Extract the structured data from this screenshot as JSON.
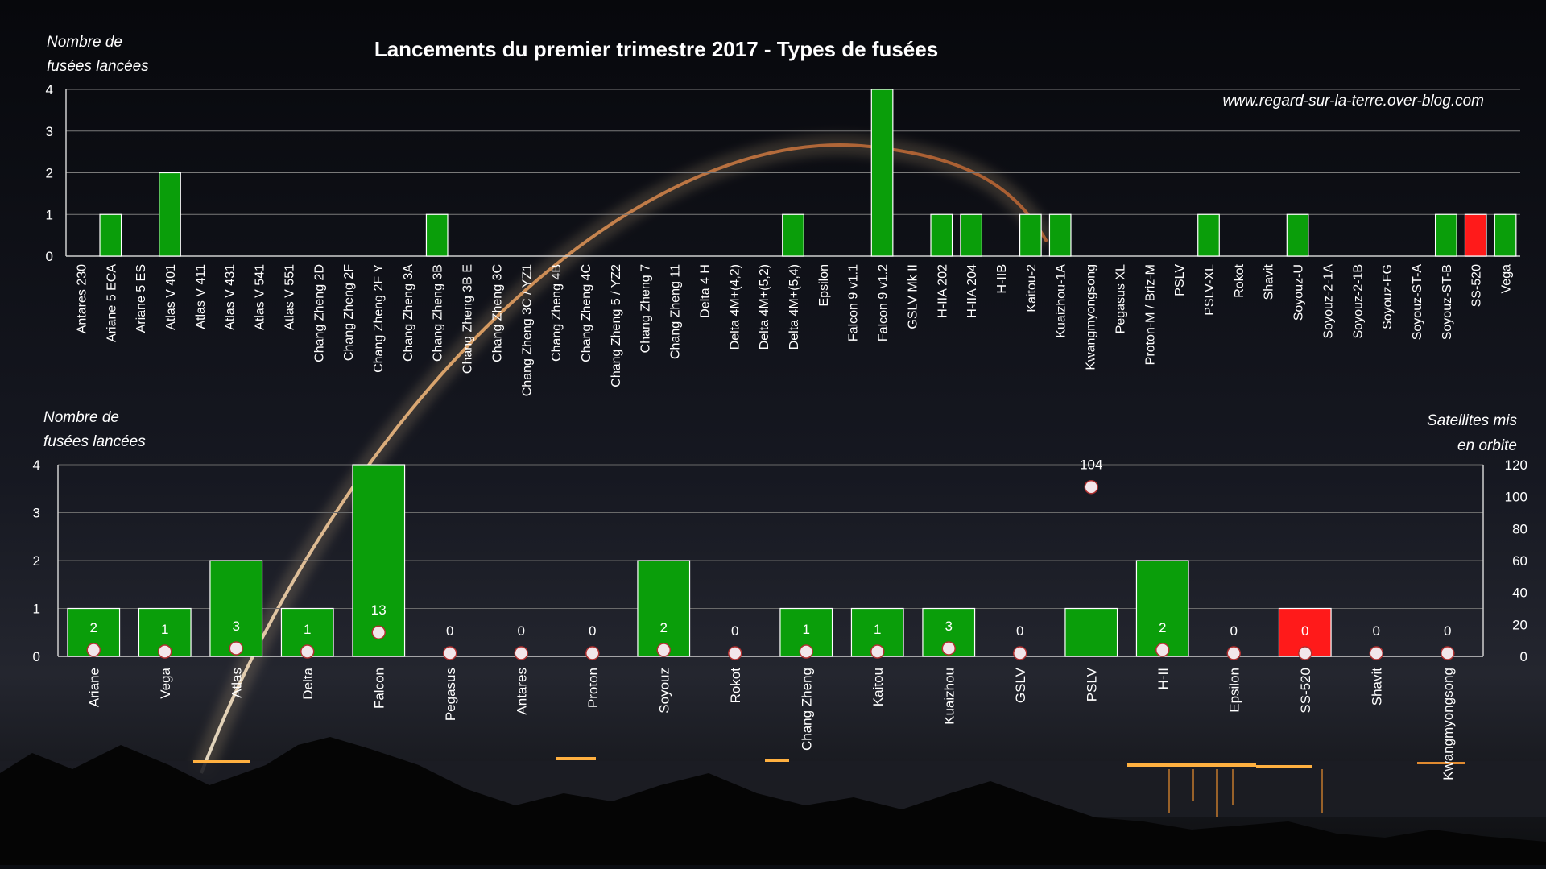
{
  "title": "Lancements du premier trimestre 2017 - Types de fusées",
  "watermark": "www.regard-sur-la-terre.over-blog.com",
  "colors": {
    "bar": "#0a9e0a",
    "highlight": "#ff1a1a",
    "marker_fill": "#f2e6ea",
    "marker_stroke": "#b03030",
    "text": "#ffffff",
    "axis": "#bfbfbf"
  },
  "chart_data": [
    {
      "type": "bar",
      "ylabel": "Nombre de\nfusées lancées",
      "ylim": [
        0,
        4
      ],
      "yticks": [
        0,
        1,
        2,
        3,
        4
      ],
      "categories": [
        "Antares 230",
        "Ariane 5 ECA",
        "Ariane 5 ES",
        "Atlas V 401",
        "Atlas V 411",
        "Atlas V 431",
        "Atlas V 541",
        "Atlas V 551",
        "Chang Zheng 2D",
        "Chang Zheng 2F",
        "Chang Zheng 2F Y",
        "Chang Zheng 3A",
        "Chang Zheng 3B",
        "Chang Zheng 3B E",
        "Chang Zheng 3C",
        "Chang Zheng 3C / YZ1",
        "Chang Zheng 4B",
        "Chang Zheng 4C",
        "Chang Zheng 5 / YZ2",
        "Chang Zheng 7",
        "Chang Zheng 11",
        "Delta 4 H",
        "Delta 4M+(4,2)",
        "Delta 4M+(5,2)",
        "Delta 4M+(5,4)",
        "Epsilon",
        "Falcon 9 v1.1",
        "Falcon 9 v1.2",
        "GSLV Mk II",
        "H-IIA 202",
        "H-IIA 204",
        "H-IIB",
        "Kaitou-2",
        "Kuaizhou-1A",
        "Kwangmyongsong",
        "Pegasus XL",
        "Proton-M / Briz-M",
        "PSLV",
        "PSLV-XL",
        "Rokot",
        "Shavit",
        "Soyouz-U",
        "Soyouz-2-1A",
        "Soyouz-2-1B",
        "Soyouz-FG",
        "Soyouz-ST-A",
        "Soyouz-ST-B",
        "SS-520",
        "Vega"
      ],
      "values": [
        0,
        1,
        0,
        2,
        0,
        0,
        0,
        0,
        0,
        0,
        0,
        0,
        1,
        0,
        0,
        0,
        0,
        0,
        0,
        0,
        0,
        0,
        0,
        0,
        1,
        0,
        0,
        4,
        0,
        1,
        1,
        0,
        1,
        1,
        0,
        0,
        0,
        0,
        1,
        0,
        0,
        1,
        0,
        0,
        0,
        0,
        1,
        1,
        1
      ],
      "highlight": [
        "SS-520"
      ]
    },
    {
      "type": "bar",
      "ylabel": "Nombre de\nfusées lancées",
      "y2label": "Satellites mis\nen orbite",
      "ylim": [
        0,
        4
      ],
      "yticks": [
        0,
        1,
        2,
        3,
        4
      ],
      "y2lim": [
        0,
        120
      ],
      "y2ticks": [
        0,
        20,
        40,
        60,
        80,
        100,
        120
      ],
      "categories": [
        "Ariane",
        "Vega",
        "Atlas",
        "Delta",
        "Falcon",
        "Pegasus",
        "Antares",
        "Proton",
        "Soyouz",
        "Rokot",
        "Chang Zheng",
        "Kaitou",
        "Kuaizhou",
        "GSLV",
        "PSLV",
        "H-II",
        "Epsilon",
        "SS-520",
        "Shavit",
        "Kwangmyongsong"
      ],
      "series": [
        {
          "values": [
            1,
            1,
            2,
            1,
            4,
            0,
            0,
            0,
            2,
            0,
            1,
            1,
            1,
            0,
            1,
            2,
            0,
            1,
            0,
            0
          ]
        },
        {
          "type": "scatter",
          "axis": "y2",
          "values": [
            2,
            1,
            3,
            1,
            13,
            0,
            0,
            0,
            2,
            0,
            1,
            1,
            3,
            0,
            104,
            2,
            0,
            0,
            0,
            0
          ]
        }
      ],
      "highlight": [
        "SS-520"
      ]
    }
  ]
}
